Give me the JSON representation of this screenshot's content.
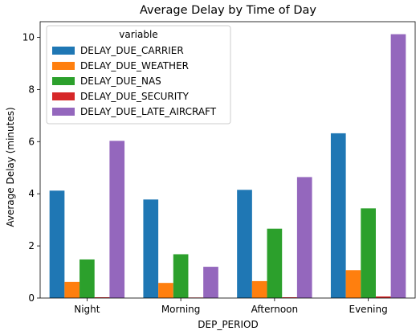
{
  "chart_data": {
    "type": "bar",
    "title": "Average Delay by Time of Day",
    "xlabel": "DEP_PERIOD",
    "ylabel": "Average Delay (minutes)",
    "categories": [
      "Night",
      "Morning",
      "Afternoon",
      "Evening"
    ],
    "ylim": [
      0,
      10.6
    ],
    "yticks": [
      0,
      2,
      4,
      6,
      8,
      10
    ],
    "grid": false,
    "legend": {
      "title": "variable",
      "placement": "top-left"
    },
    "series": [
      {
        "name": "DELAY_DUE_CARRIER",
        "color": "#1f77b4",
        "values": [
          4.12,
          3.78,
          4.15,
          6.32
        ]
      },
      {
        "name": "DELAY_DUE_WEATHER",
        "color": "#ff7f0e",
        "values": [
          0.62,
          0.58,
          0.65,
          1.07
        ]
      },
      {
        "name": "DELAY_DUE_NAS",
        "color": "#2ca02c",
        "values": [
          1.48,
          1.68,
          2.66,
          3.44
        ]
      },
      {
        "name": "DELAY_DUE_SECURITY",
        "color": "#d62728",
        "values": [
          0.03,
          0.02,
          0.03,
          0.06
        ]
      },
      {
        "name": "DELAY_DUE_LATE_AIRCRAFT",
        "color": "#9467bd",
        "values": [
          6.03,
          1.2,
          4.64,
          10.12
        ]
      }
    ]
  }
}
